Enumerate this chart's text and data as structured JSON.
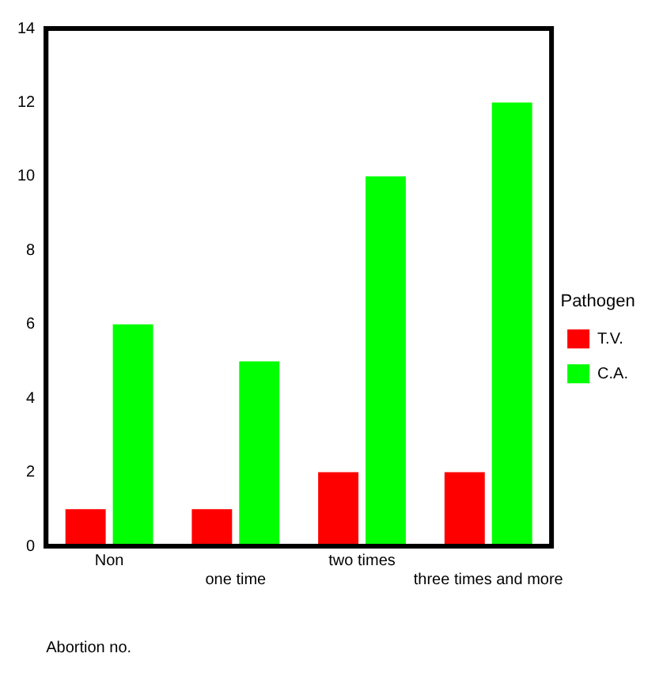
{
  "chart_data": {
    "type": "bar",
    "xlabel": "Abortion no.",
    "legend_title": "Pathogen",
    "categories": [
      "Non",
      "one time",
      "two times",
      "three times and more"
    ],
    "series": [
      {
        "name": "T.V.",
        "color": "#ff0000",
        "values": [
          1,
          1,
          2,
          2
        ]
      },
      {
        "name": "C.A.",
        "color": "#00ff00",
        "values": [
          6,
          5,
          10,
          12
        ]
      }
    ],
    "ylim": [
      0,
      14
    ],
    "yticks": [
      0,
      2,
      4,
      6,
      8,
      10,
      12,
      14
    ],
    "grid": false,
    "legend": "right"
  }
}
